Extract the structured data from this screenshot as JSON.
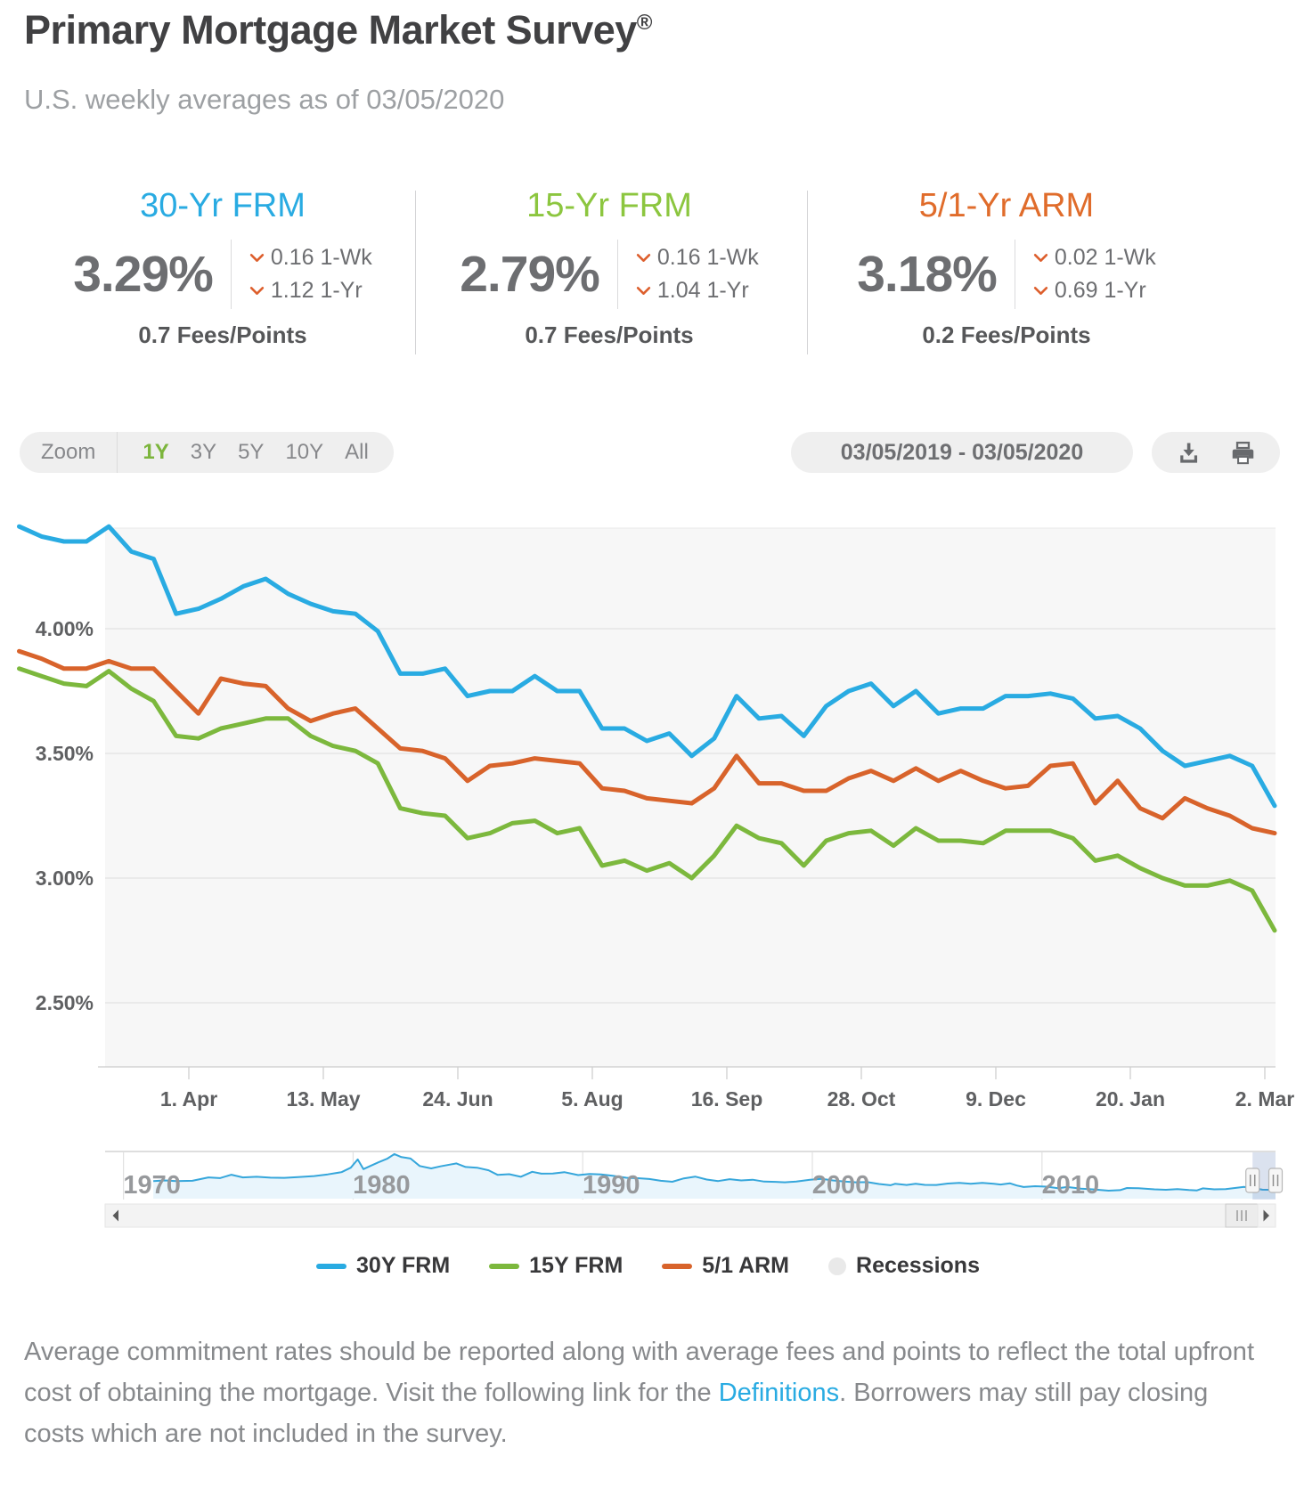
{
  "header": {
    "title": "Primary Mortgage Market Survey",
    "registered_mark": "®",
    "subtitle": "U.S. weekly averages as of 03/05/2020"
  },
  "rates": {
    "cards": [
      {
        "label": "30-Yr FRM",
        "color": "#29ABE2",
        "value": "3.29%",
        "week_change": "0.16 1-Wk",
        "year_change": "1.12 1-Yr",
        "fees": "0.7 Fees/Points"
      },
      {
        "label": "15-Yr FRM",
        "color": "#8CC63F",
        "value": "2.79%",
        "week_change": "0.16 1-Wk",
        "year_change": "1.04 1-Yr",
        "fees": "0.7 Fees/Points"
      },
      {
        "label": "5/1-Yr ARM",
        "color": "#E06C2B",
        "value": "3.18%",
        "week_change": "0.02 1-Wk",
        "year_change": "0.69 1-Yr",
        "fees": "0.2 Fees/Points"
      }
    ]
  },
  "toolbar": {
    "zoom_label": "Zoom",
    "ranges": [
      {
        "label": "1Y",
        "active": true
      },
      {
        "label": "3Y",
        "active": false
      },
      {
        "label": "5Y",
        "active": false
      },
      {
        "label": "10Y",
        "active": false
      },
      {
        "label": "All",
        "active": false
      }
    ],
    "date_range": "03/05/2019 - 03/05/2020",
    "icons": [
      "download-icon",
      "print-icon"
    ]
  },
  "colors": {
    "blue_30y": "#29ABE2",
    "green_15y": "#7CB83D",
    "orange_arm": "#D8632B",
    "chevron_down": "#DD5F2D",
    "active_range": "#7CB53C",
    "link": "#29ABE2"
  },
  "chart_data": {
    "type": "line",
    "title": "",
    "xlabel": "",
    "ylabel": "",
    "grid": true,
    "legend_position": "bottom",
    "y_ticks": [
      4.0,
      3.5,
      3.0,
      2.5
    ],
    "y_tick_labels": [
      "4.00%",
      "3.50%",
      "3.00%",
      "2.50%"
    ],
    "ylim": [
      2.28,
      4.45
    ],
    "x_tick_labels": [
      "1. Apr",
      "13. May",
      "24. Jun",
      "5. Aug",
      "16. Sep",
      "28. Oct",
      "9. Dec",
      "20. Jan",
      "2. Mar"
    ],
    "dates": [
      "2019-02-07",
      "2019-02-14",
      "2019-02-21",
      "2019-02-28",
      "2019-03-07",
      "2019-03-14",
      "2019-03-21",
      "2019-03-28",
      "2019-04-04",
      "2019-04-11",
      "2019-04-18",
      "2019-04-25",
      "2019-05-02",
      "2019-05-09",
      "2019-05-16",
      "2019-05-23",
      "2019-05-30",
      "2019-06-06",
      "2019-06-13",
      "2019-06-20",
      "2019-06-27",
      "2019-07-03",
      "2019-07-11",
      "2019-07-18",
      "2019-07-25",
      "2019-08-01",
      "2019-08-08",
      "2019-08-15",
      "2019-08-22",
      "2019-08-29",
      "2019-09-05",
      "2019-09-12",
      "2019-09-19",
      "2019-09-26",
      "2019-10-03",
      "2019-10-10",
      "2019-10-17",
      "2019-10-24",
      "2019-10-31",
      "2019-11-07",
      "2019-11-14",
      "2019-11-21",
      "2019-11-27",
      "2019-12-05",
      "2019-12-12",
      "2019-12-19",
      "2019-12-26",
      "2020-01-02",
      "2020-01-09",
      "2020-01-16",
      "2020-01-23",
      "2020-01-30",
      "2020-02-06",
      "2020-02-13",
      "2020-02-20",
      "2020-02-27",
      "2020-03-05"
    ],
    "series": [
      {
        "name": "30Y FRM",
        "color": "#29ABE2",
        "values": [
          4.41,
          4.37,
          4.35,
          4.35,
          4.41,
          4.31,
          4.28,
          4.06,
          4.08,
          4.12,
          4.17,
          4.2,
          4.14,
          4.1,
          4.07,
          4.06,
          3.99,
          3.82,
          3.82,
          3.84,
          3.73,
          3.75,
          3.75,
          3.81,
          3.75,
          3.75,
          3.6,
          3.6,
          3.55,
          3.58,
          3.49,
          3.56,
          3.73,
          3.64,
          3.65,
          3.57,
          3.69,
          3.75,
          3.78,
          3.69,
          3.75,
          3.66,
          3.68,
          3.68,
          3.73,
          3.73,
          3.74,
          3.72,
          3.64,
          3.65,
          3.6,
          3.51,
          3.45,
          3.47,
          3.49,
          3.45,
          3.29
        ]
      },
      {
        "name": "15Y FRM",
        "color": "#7CB83D",
        "values": [
          3.84,
          3.81,
          3.78,
          3.77,
          3.83,
          3.76,
          3.71,
          3.57,
          3.56,
          3.6,
          3.62,
          3.64,
          3.64,
          3.57,
          3.53,
          3.51,
          3.46,
          3.28,
          3.26,
          3.25,
          3.16,
          3.18,
          3.22,
          3.23,
          3.18,
          3.2,
          3.05,
          3.07,
          3.03,
          3.06,
          3.0,
          3.09,
          3.21,
          3.16,
          3.14,
          3.05,
          3.15,
          3.18,
          3.19,
          3.13,
          3.2,
          3.15,
          3.15,
          3.14,
          3.19,
          3.19,
          3.19,
          3.16,
          3.07,
          3.09,
          3.04,
          3.0,
          2.97,
          2.97,
          2.99,
          2.95,
          2.79
        ]
      },
      {
        "name": "5/1 ARM",
        "color": "#D8632B",
        "values": [
          3.91,
          3.88,
          3.84,
          3.84,
          3.87,
          3.84,
          3.84,
          3.75,
          3.66,
          3.8,
          3.78,
          3.77,
          3.68,
          3.63,
          3.66,
          3.68,
          3.6,
          3.52,
          3.51,
          3.48,
          3.39,
          3.45,
          3.46,
          3.48,
          3.47,
          3.46,
          3.36,
          3.35,
          3.32,
          3.31,
          3.3,
          3.36,
          3.49,
          3.38,
          3.38,
          3.35,
          3.35,
          3.4,
          3.43,
          3.39,
          3.44,
          3.39,
          3.43,
          3.39,
          3.36,
          3.37,
          3.45,
          3.46,
          3.3,
          3.39,
          3.28,
          3.24,
          3.32,
          3.28,
          3.25,
          3.2,
          3.18
        ]
      }
    ],
    "navigator": {
      "name": "30Y FRM full history",
      "color": "#35A6DB",
      "year_labels": [
        "1970",
        "1980",
        "1990",
        "2000",
        "2010"
      ],
      "selected_window": "03/05/2019 - 03/05/2020",
      "years": [
        1971.3,
        1971.8,
        1972.3,
        1973.0,
        1973.7,
        1974.2,
        1974.7,
        1975.2,
        1975.8,
        1976.4,
        1977.0,
        1977.6,
        1978.3,
        1978.9,
        1979.5,
        1979.9,
        1980.2,
        1980.45,
        1980.8,
        1981.1,
        1981.5,
        1981.8,
        1982.1,
        1982.5,
        1982.9,
        1983.4,
        1983.8,
        1984.5,
        1984.9,
        1985.4,
        1985.9,
        1986.3,
        1986.8,
        1987.3,
        1987.8,
        1988.2,
        1988.7,
        1989.2,
        1989.8,
        1990.3,
        1990.8,
        1991.3,
        1991.9,
        1992.4,
        1992.9,
        1993.4,
        1993.9,
        1994.4,
        1994.9,
        1995.4,
        1995.9,
        1996.4,
        1996.9,
        1997.4,
        1997.9,
        1998.4,
        1998.8,
        1999.3,
        1999.9,
        2000.4,
        2000.9,
        2001.4,
        2001.9,
        2002.4,
        2002.9,
        2003.4,
        2003.6,
        2004.1,
        2004.5,
        2004.9,
        2005.4,
        2005.9,
        2006.4,
        2006.9,
        2007.4,
        2007.9,
        2008.2,
        2008.6,
        2008.9,
        2009.2,
        2009.7,
        2010.2,
        2010.7,
        2011.1,
        2011.7,
        2012.2,
        2012.9,
        2013.4,
        2013.7,
        2014.2,
        2014.9,
        2015.4,
        2015.9,
        2016.4,
        2016.75,
        2017.0,
        2017.5,
        2018.0,
        2018.8,
        2019.2,
        2019.6,
        2019.9,
        2020.17
      ],
      "values": [
        7.33,
        7.6,
        7.3,
        7.45,
        8.85,
        8.55,
        9.95,
        8.85,
        9.1,
        8.75,
        8.65,
        8.95,
        9.4,
        10.1,
        11.05,
        12.9,
        16.35,
        12.3,
        13.8,
        15.1,
        16.7,
        18.55,
        17.3,
        16.7,
        13.6,
        12.6,
        13.45,
        14.65,
        13.2,
        12.9,
        11.8,
        9.9,
        10.2,
        9.1,
        11.2,
        10.4,
        10.45,
        11.05,
        9.8,
        10.3,
        10.1,
        9.5,
        8.7,
        8.5,
        8.2,
        7.45,
        7.05,
        8.45,
        9.2,
        7.95,
        7.35,
        8.1,
        7.6,
        7.9,
        7.1,
        7.0,
        6.8,
        7.1,
        7.9,
        8.25,
        7.6,
        7.1,
        6.8,
        6.9,
        6.1,
        5.6,
        6.2,
        5.7,
        6.2,
        5.75,
        5.7,
        6.3,
        6.6,
        6.2,
        6.6,
        6.2,
        5.9,
        6.4,
        5.5,
        4.85,
        5.2,
        5.0,
        4.35,
        4.85,
        4.2,
        3.9,
        3.35,
        3.55,
        4.45,
        4.35,
        3.9,
        3.7,
        3.95,
        3.6,
        3.45,
        4.3,
        3.9,
        4.0,
        4.9,
        4.4,
        3.75,
        3.7,
        3.29
      ]
    }
  },
  "legend": {
    "items": [
      {
        "label": "30Y FRM",
        "color": "#29ABE2",
        "marker": "dash"
      },
      {
        "label": "15Y FRM",
        "color": "#7CB83D",
        "marker": "dash"
      },
      {
        "label": "5/1 ARM",
        "color": "#D8632B",
        "marker": "dash"
      },
      {
        "label": "Recessions",
        "color": "#E9E9E9",
        "marker": "circle"
      }
    ]
  },
  "footer": {
    "text_before_link": "Average commitment rates should be reported along with average fees and points to reflect the total upfront cost of obtaining the mortgage. Visit the following link for the ",
    "link": "Definitions",
    "text_after_link": ". Borrowers may still pay closing costs which are not included in the survey."
  }
}
